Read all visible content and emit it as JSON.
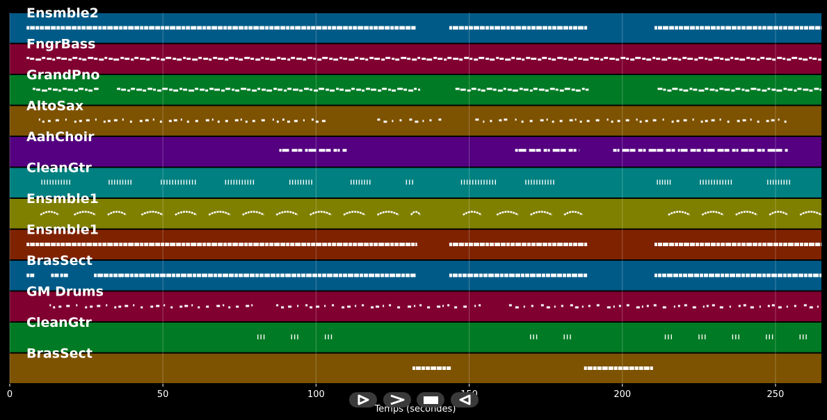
{
  "chart_data": {
    "type": "piano-roll",
    "xlabel": "Temps (secondes)",
    "ylabel": "",
    "title": "",
    "xlim": [
      0,
      265
    ],
    "xticks": [
      0,
      50,
      100,
      150,
      200,
      250
    ],
    "grid": true,
    "tracks": [
      {
        "name": "Ensmble2",
        "color": "#005a87",
        "style": "bar",
        "segments": [
          [
            5.5,
            132.5
          ],
          [
            143.5,
            188.5
          ],
          [
            210.5,
            265
          ]
        ]
      },
      {
        "name": "FngrBass",
        "color": "#800030",
        "style": "dashed",
        "segments": [
          [
            5.5,
            265
          ]
        ]
      },
      {
        "name": "GrandPno",
        "color": "#007a24",
        "style": "dashed",
        "segments": [
          [
            7.5,
            29
          ],
          [
            35,
            134
          ],
          [
            145.5,
            189
          ],
          [
            211.5,
            265
          ]
        ]
      },
      {
        "name": "AltoSax",
        "color": "#7d5200",
        "style": "dots",
        "segments": [
          [
            9.5,
            89
          ],
          [
            89,
            102
          ],
          [
            120,
            140
          ],
          [
            152,
            163
          ],
          [
            165,
            254
          ]
        ]
      },
      {
        "name": "AahChoir",
        "color": "#540080",
        "style": "groups",
        "segments": [
          [
            88,
            110
          ],
          [
            165,
            186
          ],
          [
            197,
            254
          ]
        ]
      },
      {
        "name": "CleanGtr",
        "color": "#008080",
        "style": "ticks",
        "segments": [
          [
            10,
            20
          ],
          [
            32,
            40
          ],
          [
            49,
            61
          ],
          [
            70,
            80
          ],
          [
            91,
            99
          ],
          [
            111,
            118
          ],
          [
            129,
            132
          ],
          [
            147,
            159
          ],
          [
            168,
            178
          ],
          [
            211,
            216
          ],
          [
            225,
            236
          ],
          [
            247,
            255
          ]
        ]
      },
      {
        "name": "Ensmble1",
        "color": "#7f7f00",
        "style": "arcs",
        "segments": [
          [
            10,
            16
          ],
          [
            21,
            28
          ],
          [
            32,
            38
          ],
          [
            43,
            50
          ],
          [
            54,
            61
          ],
          [
            65,
            72
          ],
          [
            76,
            83
          ],
          [
            87,
            94
          ],
          [
            98,
            105
          ],
          [
            109,
            116
          ],
          [
            120,
            127
          ],
          [
            131,
            134
          ],
          [
            148,
            154
          ],
          [
            159,
            166
          ],
          [
            170,
            177
          ],
          [
            181,
            187
          ],
          [
            215,
            222
          ],
          [
            226,
            233
          ],
          [
            237,
            244
          ],
          [
            248,
            254
          ],
          [
            258,
            265
          ]
        ]
      },
      {
        "name": "Ensmble1",
        "color": "#7f2200",
        "style": "bar",
        "segments": [
          [
            5.5,
            133
          ],
          [
            143.5,
            188.5
          ],
          [
            210.5,
            265
          ]
        ]
      },
      {
        "name": "BrasSect",
        "color": "#005a87",
        "style": "bar",
        "segments": [
          [
            5.5,
            8
          ],
          [
            13.5,
            16
          ],
          [
            16.5,
            19
          ],
          [
            27.5,
            132.5
          ],
          [
            143.5,
            188.5
          ],
          [
            210.5,
            265
          ]
        ]
      },
      {
        "name": "GM Drums",
        "color": "#800030",
        "style": "dots",
        "segments": [
          [
            13,
            80
          ],
          [
            87,
            155
          ],
          [
            163,
            265
          ]
        ]
      },
      {
        "name": "CleanGtr",
        "color": "#007a24",
        "style": "ticks",
        "segments": [
          [
            80.5,
            83.5
          ],
          [
            91.5,
            94.5
          ],
          [
            102.5,
            105.5
          ],
          [
            169.5,
            172.5
          ],
          [
            180.5,
            183.5
          ],
          [
            213.5,
            216.5
          ],
          [
            224.5,
            227.5
          ],
          [
            235.5,
            238.5
          ],
          [
            246.5,
            249.5
          ],
          [
            257.5,
            260.5
          ]
        ]
      },
      {
        "name": "BrasSect",
        "color": "#7d5200",
        "style": "bar",
        "segments": [
          [
            131.5,
            144
          ],
          [
            187.5,
            210
          ]
        ]
      }
    ]
  },
  "controls": [
    {
      "name": "play-forward",
      "icon": "play-right-icon"
    },
    {
      "name": "fast-forward",
      "icon": "chevron-right-icon"
    },
    {
      "name": "stop",
      "icon": "stop-icon"
    },
    {
      "name": "rewind",
      "icon": "play-left-icon"
    }
  ]
}
